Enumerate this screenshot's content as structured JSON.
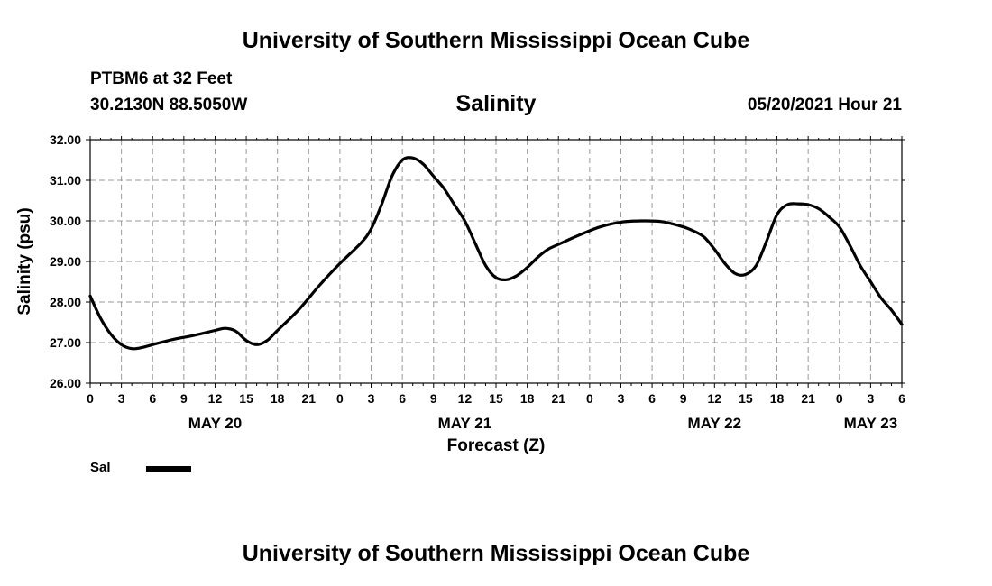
{
  "header": {
    "title_top": "University of Southern Mississippi Ocean Cube",
    "title_bottom": "University of Southern Mississippi Ocean Cube",
    "station": "PTBM6 at 32 Feet",
    "latlon": "30.2130N  88.5050W",
    "date_hour": "05/20/2021 Hour 21"
  },
  "legend": {
    "label": "Sal",
    "color": "#000000"
  },
  "chart_data": {
    "type": "line",
    "title": "Salinity",
    "xlabel": "Forecast (Z)",
    "ylabel": "Salinity (psu)",
    "xlim": [
      0,
      78
    ],
    "ylim": [
      26.0,
      32.0
    ],
    "yticks": [
      "26.00",
      "27.00",
      "28.00",
      "29.00",
      "30.00",
      "31.00",
      "32.00"
    ],
    "xtick_labels": [
      "0",
      "3",
      "6",
      "9",
      "12",
      "15",
      "18",
      "21",
      "0",
      "3",
      "6",
      "9",
      "12",
      "15",
      "18",
      "21",
      "0",
      "3",
      "6",
      "9",
      "12",
      "15",
      "18",
      "21",
      "0",
      "3",
      "6"
    ],
    "day_labels": [
      {
        "label": "MAY 20",
        "hour": 12
      },
      {
        "label": "MAY 21",
        "hour": 36
      },
      {
        "label": "MAY 22",
        "hour": 60
      },
      {
        "label": "MAY 23",
        "hour": 75
      }
    ],
    "grid": true,
    "series": [
      {
        "name": "Sal",
        "x": [
          0,
          1,
          2,
          3,
          4,
          5,
          6,
          8,
          10,
          12,
          13,
          14,
          15,
          16,
          17,
          18,
          20,
          22,
          24,
          26,
          27,
          28,
          29,
          30,
          31,
          32,
          33,
          34,
          35,
          36,
          37,
          38,
          39,
          40,
          41,
          42,
          43,
          44,
          45,
          47,
          49,
          51,
          53,
          55,
          57,
          58,
          59,
          60,
          61,
          62,
          63,
          64,
          65,
          66,
          67,
          68,
          69,
          70,
          71,
          72,
          73,
          74,
          75,
          76,
          77,
          78
        ],
        "y": [
          28.15,
          27.6,
          27.2,
          26.95,
          26.85,
          26.88,
          26.95,
          27.08,
          27.18,
          27.3,
          27.35,
          27.28,
          27.05,
          26.95,
          27.05,
          27.3,
          27.8,
          28.4,
          28.95,
          29.45,
          29.8,
          30.4,
          31.1,
          31.5,
          31.55,
          31.4,
          31.1,
          30.8,
          30.4,
          30.0,
          29.45,
          28.9,
          28.6,
          28.55,
          28.65,
          28.85,
          29.1,
          29.3,
          29.42,
          29.65,
          29.85,
          29.97,
          30.0,
          29.98,
          29.85,
          29.75,
          29.6,
          29.3,
          28.95,
          28.7,
          28.68,
          28.9,
          29.5,
          30.15,
          30.4,
          30.42,
          30.4,
          30.3,
          30.1,
          29.85,
          29.4,
          28.9,
          28.5,
          28.1,
          27.8,
          27.45
        ]
      }
    ]
  }
}
